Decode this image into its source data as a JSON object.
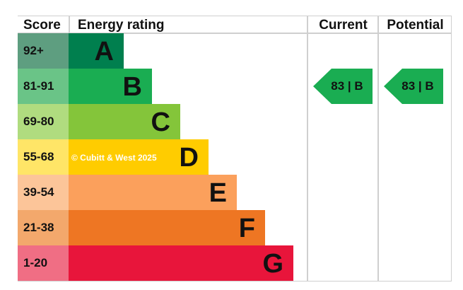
{
  "headers": {
    "score": "Score",
    "rating": "Energy rating",
    "current": "Current",
    "potential": "Potential"
  },
  "watermark": "© Cubitt & West 2025",
  "chart_data": {
    "type": "bar",
    "bands": [
      {
        "letter": "A",
        "range": "92+",
        "color": "#007f4e",
        "score_color": "#5e9e80",
        "length": 1
      },
      {
        "letter": "B",
        "range": "81-91",
        "color": "#1aad52",
        "score_color": "#6ac487",
        "length": 2
      },
      {
        "letter": "C",
        "range": "69-80",
        "color": "#84c53a",
        "score_color": "#b0dc7f",
        "length": 3
      },
      {
        "letter": "D",
        "range": "55-68",
        "color": "#ffcc00",
        "score_color": "#ffe567",
        "length": 4
      },
      {
        "letter": "E",
        "range": "39-54",
        "color": "#fba05c",
        "score_color": "#fcc599",
        "length": 5
      },
      {
        "letter": "F",
        "range": "21-38",
        "color": "#ee7623",
        "score_color": "#f3a86c",
        "length": 6
      },
      {
        "letter": "G",
        "range": "1-20",
        "color": "#e8153b",
        "score_color": "#f06e84",
        "length": 7
      }
    ],
    "current": {
      "score": 83,
      "band": "B",
      "label": "83 | B",
      "color": "#1aad52"
    },
    "potential": {
      "score": 83,
      "band": "B",
      "label": "83 | B",
      "color": "#1aad52"
    }
  }
}
